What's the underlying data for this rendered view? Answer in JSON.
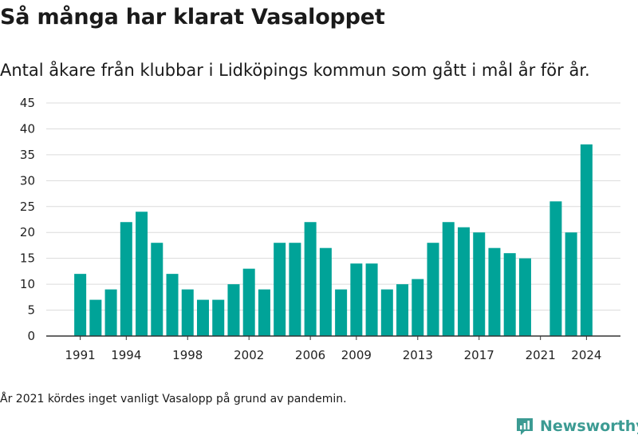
{
  "title": "Så många har klarat Vasaloppet",
  "subtitle": "Antal åkare från klubbar i Lidköpings kommun som gått i mål år för år.",
  "footnote": "År 2021 kördes inget vanligt Vasalopp på grund av pandemin.",
  "brand": {
    "name": "Newsworthy",
    "icon": "newsworthy-logo-icon",
    "color": "#3c9b93"
  },
  "chart_data": {
    "type": "bar",
    "bar_color": "#00a398",
    "x": [
      1991,
      1992,
      1993,
      1994,
      1995,
      1996,
      1997,
      1998,
      1999,
      2000,
      2001,
      2002,
      2003,
      2004,
      2005,
      2006,
      2007,
      2008,
      2009,
      2010,
      2011,
      2012,
      2013,
      2014,
      2015,
      2016,
      2017,
      2018,
      2019,
      2020,
      2021,
      2022,
      2023,
      2024
    ],
    "values": [
      12,
      7,
      9,
      22,
      24,
      18,
      12,
      9,
      7,
      7,
      10,
      13,
      9,
      18,
      18,
      22,
      17,
      9,
      14,
      14,
      9,
      10,
      11,
      18,
      22,
      21,
      20,
      17,
      16,
      15,
      0,
      26,
      20,
      37
    ],
    "x_tick_labels": [
      1991,
      1994,
      1998,
      2002,
      2006,
      2009,
      2013,
      2017,
      2021,
      2024
    ],
    "y_ticks": [
      0,
      5,
      10,
      15,
      20,
      25,
      30,
      35,
      40,
      45
    ],
    "ylim": [
      0,
      45
    ],
    "xlim": [
      1990.5,
      2024.5
    ],
    "grid": true
  }
}
